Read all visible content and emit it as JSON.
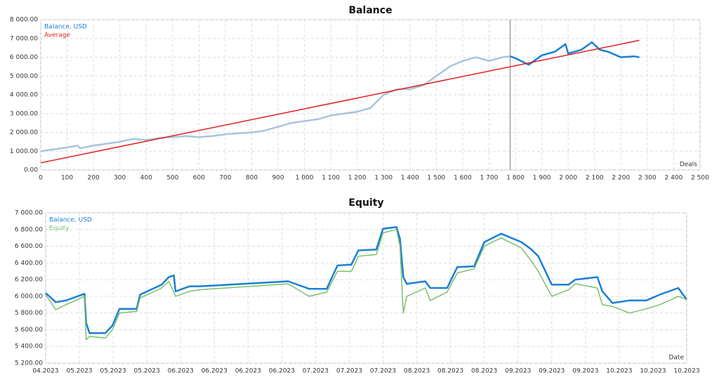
{
  "chart_data": [
    {
      "type": "line",
      "title": "Balance",
      "x_label": "Deals",
      "grid": true,
      "legend": "top-left",
      "xlim": [
        0,
        2500
      ],
      "xticks": [
        0,
        100,
        200,
        300,
        400,
        500,
        600,
        700,
        800,
        900,
        {
          "value": 1000,
          "label": "1 000"
        },
        {
          "value": 1100,
          "label": "1 100"
        },
        {
          "value": 1200,
          "label": "1 200"
        },
        {
          "value": 1300,
          "label": "1 300"
        },
        {
          "value": 1400,
          "label": "1 400"
        },
        {
          "value": 1500,
          "label": "1 500"
        },
        {
          "value": 1600,
          "label": "1 600"
        },
        {
          "value": 1700,
          "label": "1 700"
        },
        {
          "value": 1800,
          "label": "1 800"
        },
        {
          "value": 1900,
          "label": "1 900"
        },
        {
          "value": 2000,
          "label": "2 000"
        },
        {
          "value": 2100,
          "label": "2 100"
        },
        {
          "value": 2200,
          "label": "2 200"
        },
        {
          "value": 2300,
          "label": "2 300"
        },
        {
          "value": 2400,
          "label": "2 400"
        },
        {
          "value": 2500,
          "label": "2 500"
        }
      ],
      "ylim": [
        0,
        8000
      ],
      "yticks": [
        {
          "value": 0,
          "label": "0.00"
        },
        {
          "value": 1000,
          "label": "1 000.00"
        },
        {
          "value": 2000,
          "label": "2 000.00"
        },
        {
          "value": 3000,
          "label": "3 000.00"
        },
        {
          "value": 4000,
          "label": "4 000.00"
        },
        {
          "value": 5000,
          "label": "5 000.00"
        },
        {
          "value": 6000,
          "label": "6 000.00"
        },
        {
          "value": 7000,
          "label": "7 000.00"
        },
        {
          "value": 8000,
          "label": "8 000.00"
        }
      ],
      "highlight_from": 1780,
      "divider_color": "#a0a0a0",
      "series": [
        {
          "name": "Balance, USD",
          "color": "#1a7fd4",
          "early_color": "#a9c4dd",
          "width": 2.5,
          "x": [
            0,
            50,
            100,
            140,
            150,
            200,
            250,
            300,
            350,
            400,
            450,
            500,
            550,
            600,
            650,
            700,
            750,
            800,
            850,
            900,
            950,
            1000,
            1050,
            1100,
            1150,
            1200,
            1250,
            1300,
            1350,
            1400,
            1450,
            1500,
            1550,
            1600,
            1650,
            1700,
            1750,
            1780,
            1800,
            1850,
            1900,
            1950,
            1990,
            2000,
            2050,
            2090,
            2120,
            2150,
            2200,
            2250,
            2270
          ],
          "values": [
            1000,
            1100,
            1200,
            1300,
            1150,
            1300,
            1400,
            1500,
            1650,
            1600,
            1700,
            1750,
            1800,
            1750,
            1800,
            1900,
            1950,
            2000,
            2100,
            2300,
            2500,
            2600,
            2700,
            2900,
            3000,
            3100,
            3300,
            4000,
            4300,
            4300,
            4500,
            5000,
            5500,
            5800,
            6000,
            5800,
            6000,
            6050,
            5950,
            5600,
            6100,
            6300,
            6700,
            6200,
            6400,
            6800,
            6400,
            6300,
            6000,
            6050,
            6000
          ]
        },
        {
          "name": "Average",
          "color": "#e02020",
          "width": 1.5,
          "x": [
            0,
            2270
          ],
          "values": [
            380,
            6900
          ]
        }
      ]
    },
    {
      "type": "line",
      "title": "Equity",
      "x_label": "Date",
      "grid": true,
      "legend": "top-left",
      "xlim": [
        0,
        19
      ],
      "xticks": [
        {
          "value": 0,
          "label": "04.2023"
        },
        {
          "value": 1,
          "label": "05.2023"
        },
        {
          "value": 2,
          "label": "05.2023"
        },
        {
          "value": 3,
          "label": "05.2023"
        },
        {
          "value": 4,
          "label": "06.2023"
        },
        {
          "value": 5,
          "label": "06.2023"
        },
        {
          "value": 6,
          "label": "06.2023"
        },
        {
          "value": 7,
          "label": "06.2023"
        },
        {
          "value": 8,
          "label": "07.2023"
        },
        {
          "value": 9,
          "label": "07.2023"
        },
        {
          "value": 10,
          "label": "07.2023"
        },
        {
          "value": 11,
          "label": "08.2023"
        },
        {
          "value": 12,
          "label": "08.2023"
        },
        {
          "value": 13,
          "label": "08.2023"
        },
        {
          "value": 14,
          "label": "09.2023"
        },
        {
          "value": 15,
          "label": "09.2023"
        },
        {
          "value": 16,
          "label": "09.2023"
        },
        {
          "value": 17,
          "label": "10.2023"
        },
        {
          "value": 18,
          "label": "10.2023"
        },
        {
          "value": 19,
          "label": "10.2023"
        }
      ],
      "ylim": [
        5200,
        7000
      ],
      "yticks": [
        {
          "value": 5200,
          "label": "5 200.00"
        },
        {
          "value": 5400,
          "label": "5 400.00"
        },
        {
          "value": 5600,
          "label": "5 600.00"
        },
        {
          "value": 5800,
          "label": "5 800.00"
        },
        {
          "value": 6000,
          "label": "6 000.00"
        },
        {
          "value": 6200,
          "label": "6 200.00"
        },
        {
          "value": 6400,
          "label": "6 400.00"
        },
        {
          "value": 6600,
          "label": "6 600.00"
        },
        {
          "value": 6800,
          "label": "6 800.00"
        },
        {
          "value": 7000,
          "label": "7 000.00"
        }
      ],
      "x": [
        0,
        0.3,
        0.6,
        1.15,
        1.2,
        1.3,
        1.77,
        1.98,
        2.19,
        2.7,
        2.8,
        3.44,
        3.65,
        3.8,
        3.85,
        4.27,
        4.58,
        7.19,
        7.81,
        8.33,
        8.65,
        9.06,
        9.27,
        9.8,
        10.0,
        10.4,
        10.5,
        10.6,
        10.7,
        11.25,
        11.4,
        11.9,
        12.2,
        12.7,
        13.0,
        13.5,
        14.1,
        14.4,
        14.6,
        15.0,
        15.5,
        15.7,
        16.35,
        16.5,
        16.8,
        17.3,
        17.8,
        18.2,
        18.75,
        19
      ],
      "series": [
        {
          "name": "Balance, USD",
          "color": "#1a7fd4",
          "width": 2.5,
          "values": [
            6040,
            5930,
            5950,
            6030,
            5680,
            5560,
            5560,
            5650,
            5850,
            5850,
            6020,
            6140,
            6230,
            6250,
            6060,
            6120,
            6120,
            6180,
            6090,
            6090,
            6370,
            6380,
            6550,
            6560,
            6810,
            6830,
            6690,
            6230,
            6150,
            6180,
            6100,
            6100,
            6350,
            6360,
            6650,
            6750,
            6650,
            6560,
            6480,
            6140,
            6140,
            6200,
            6230,
            6060,
            5920,
            5950,
            5950,
            6020,
            6100,
            5960
          ]
        },
        {
          "name": "Equity",
          "color": "#7cbf6a",
          "width": 1.5,
          "values": [
            6020,
            5840,
            5900,
            6000,
            5480,
            5520,
            5500,
            5600,
            5800,
            5820,
            5980,
            6100,
            6180,
            6050,
            6000,
            6060,
            6080,
            6150,
            6000,
            6050,
            6300,
            6300,
            6480,
            6500,
            6760,
            6800,
            6600,
            5800,
            6000,
            6100,
            5950,
            6050,
            6280,
            6330,
            6600,
            6700,
            6580,
            6420,
            6300,
            6000,
            6080,
            6150,
            6100,
            5900,
            5880,
            5800,
            5850,
            5900,
            6000,
            5960
          ]
        }
      ]
    }
  ]
}
